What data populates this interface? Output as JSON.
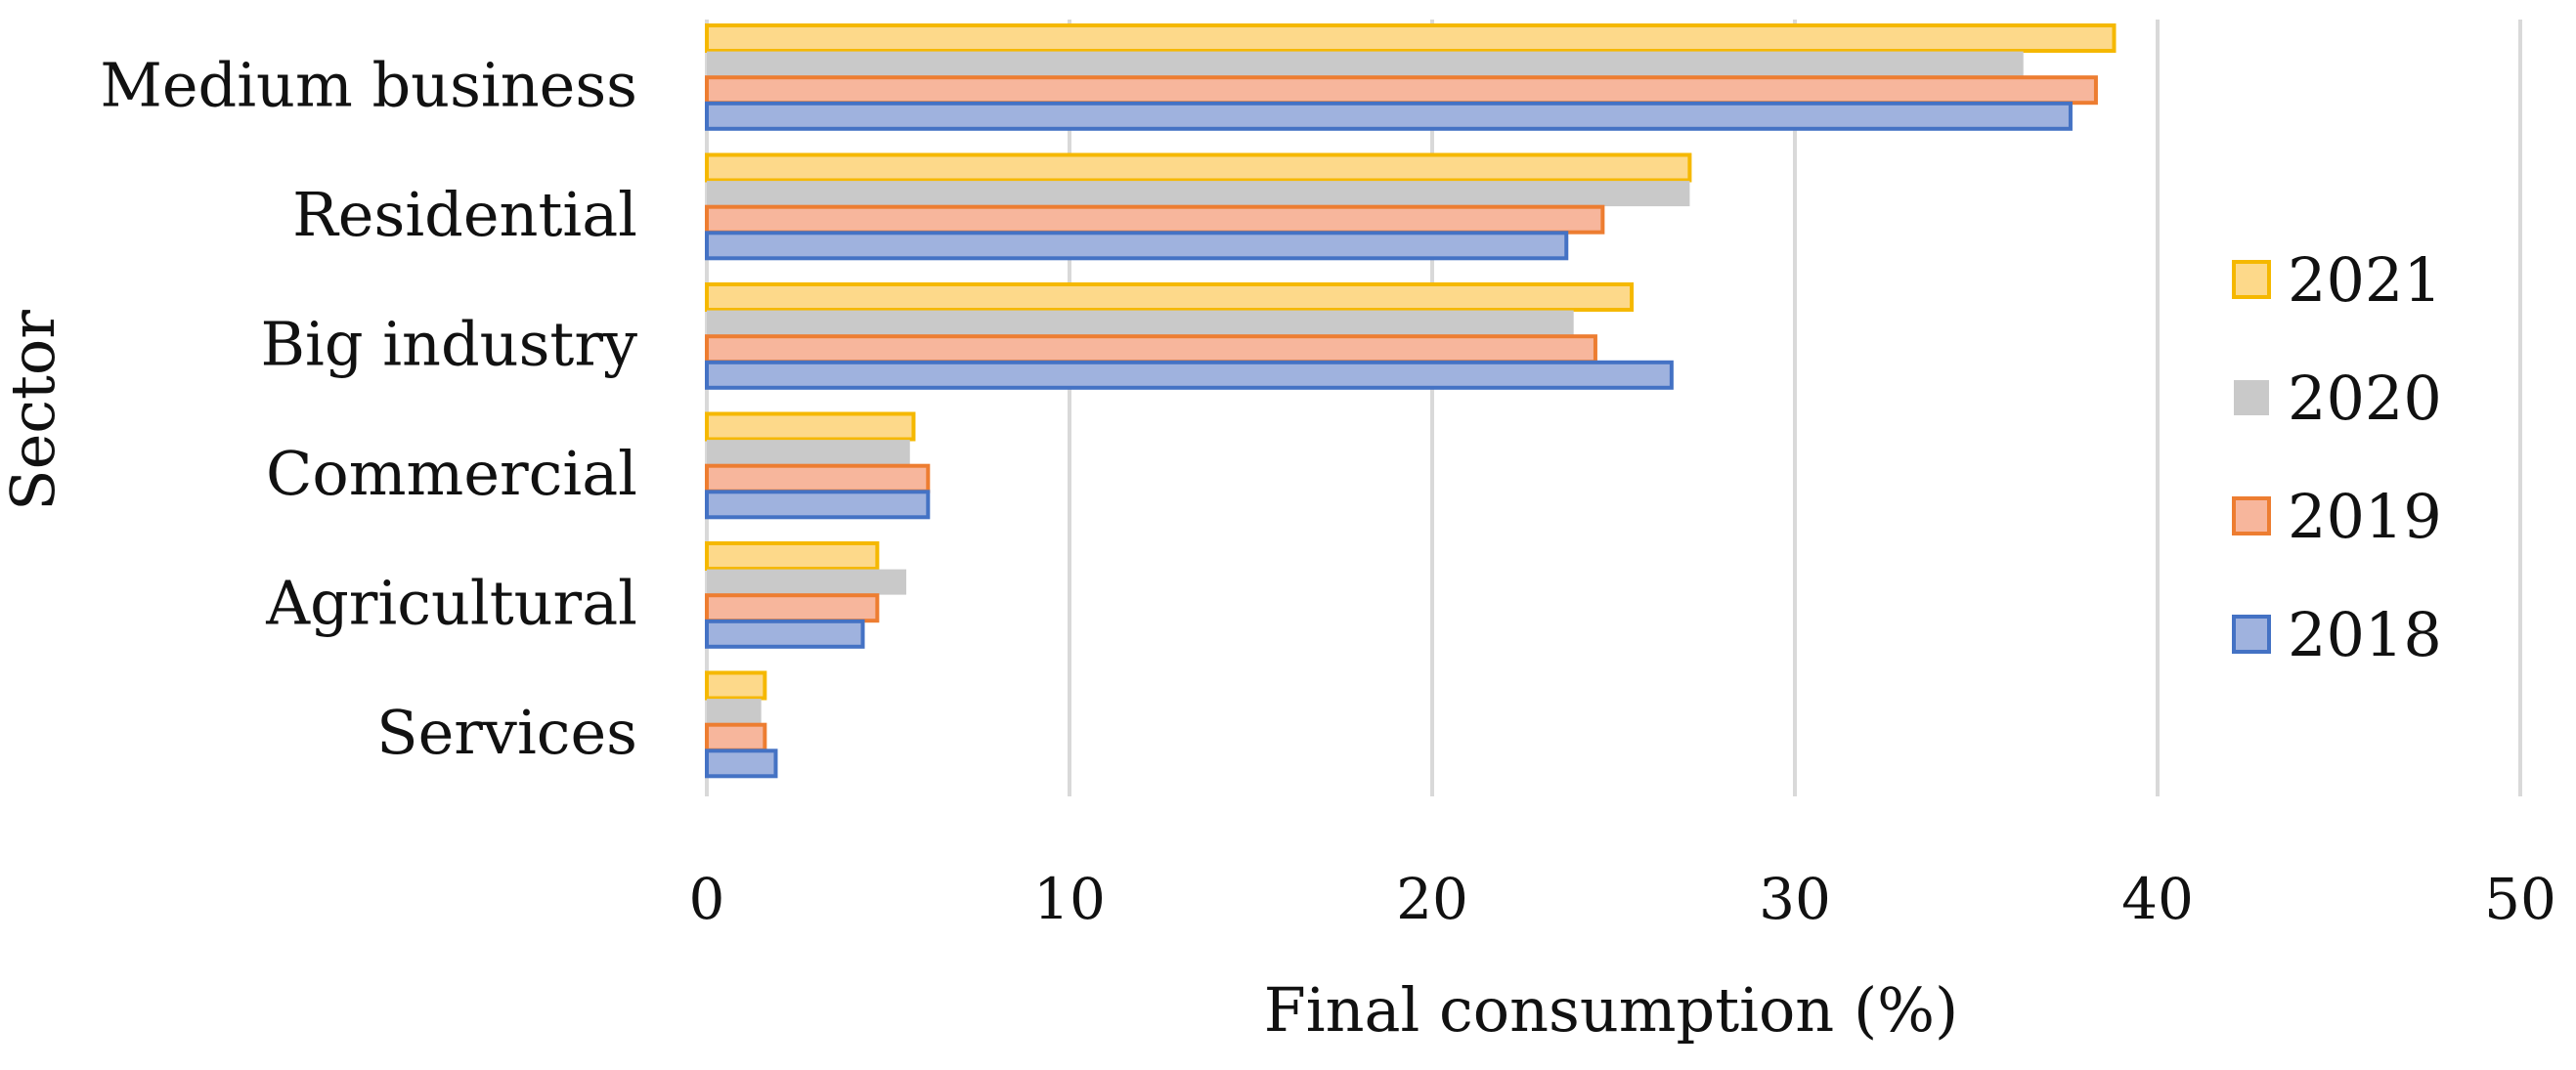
{
  "chart_data": {
    "type": "bar",
    "orientation": "horizontal",
    "title": "",
    "xlabel": "Final consumption (%)",
    "ylabel": "Sector",
    "xlim": [
      0,
      50
    ],
    "xticks": [
      "0",
      "10",
      "20",
      "30",
      "40",
      "50"
    ],
    "grid": "vertical",
    "legend_position": "right",
    "categories": [
      "Medium business",
      "Residential",
      "Big industry",
      "Commercial",
      "Agricultural",
      "Services"
    ],
    "series": [
      {
        "name": "2021",
        "fill": "#fdd98a",
        "stroke": "#f5b800",
        "values": [
          38.8,
          27.1,
          25.5,
          5.7,
          4.7,
          1.6
        ]
      },
      {
        "name": "2020",
        "fill": "#c9c9c9",
        "stroke": "#c9c9c9",
        "values": [
          36.3,
          27.1,
          23.9,
          5.6,
          5.5,
          1.5
        ]
      },
      {
        "name": "2019",
        "fill": "#f7b69c",
        "stroke": "#ed7d31",
        "values": [
          38.3,
          24.7,
          24.5,
          6.1,
          4.7,
          1.6
        ]
      },
      {
        "name": "2018",
        "fill": "#9fb2de",
        "stroke": "#4472c4",
        "values": [
          37.6,
          23.7,
          26.6,
          6.1,
          4.3,
          1.9
        ]
      }
    ]
  }
}
